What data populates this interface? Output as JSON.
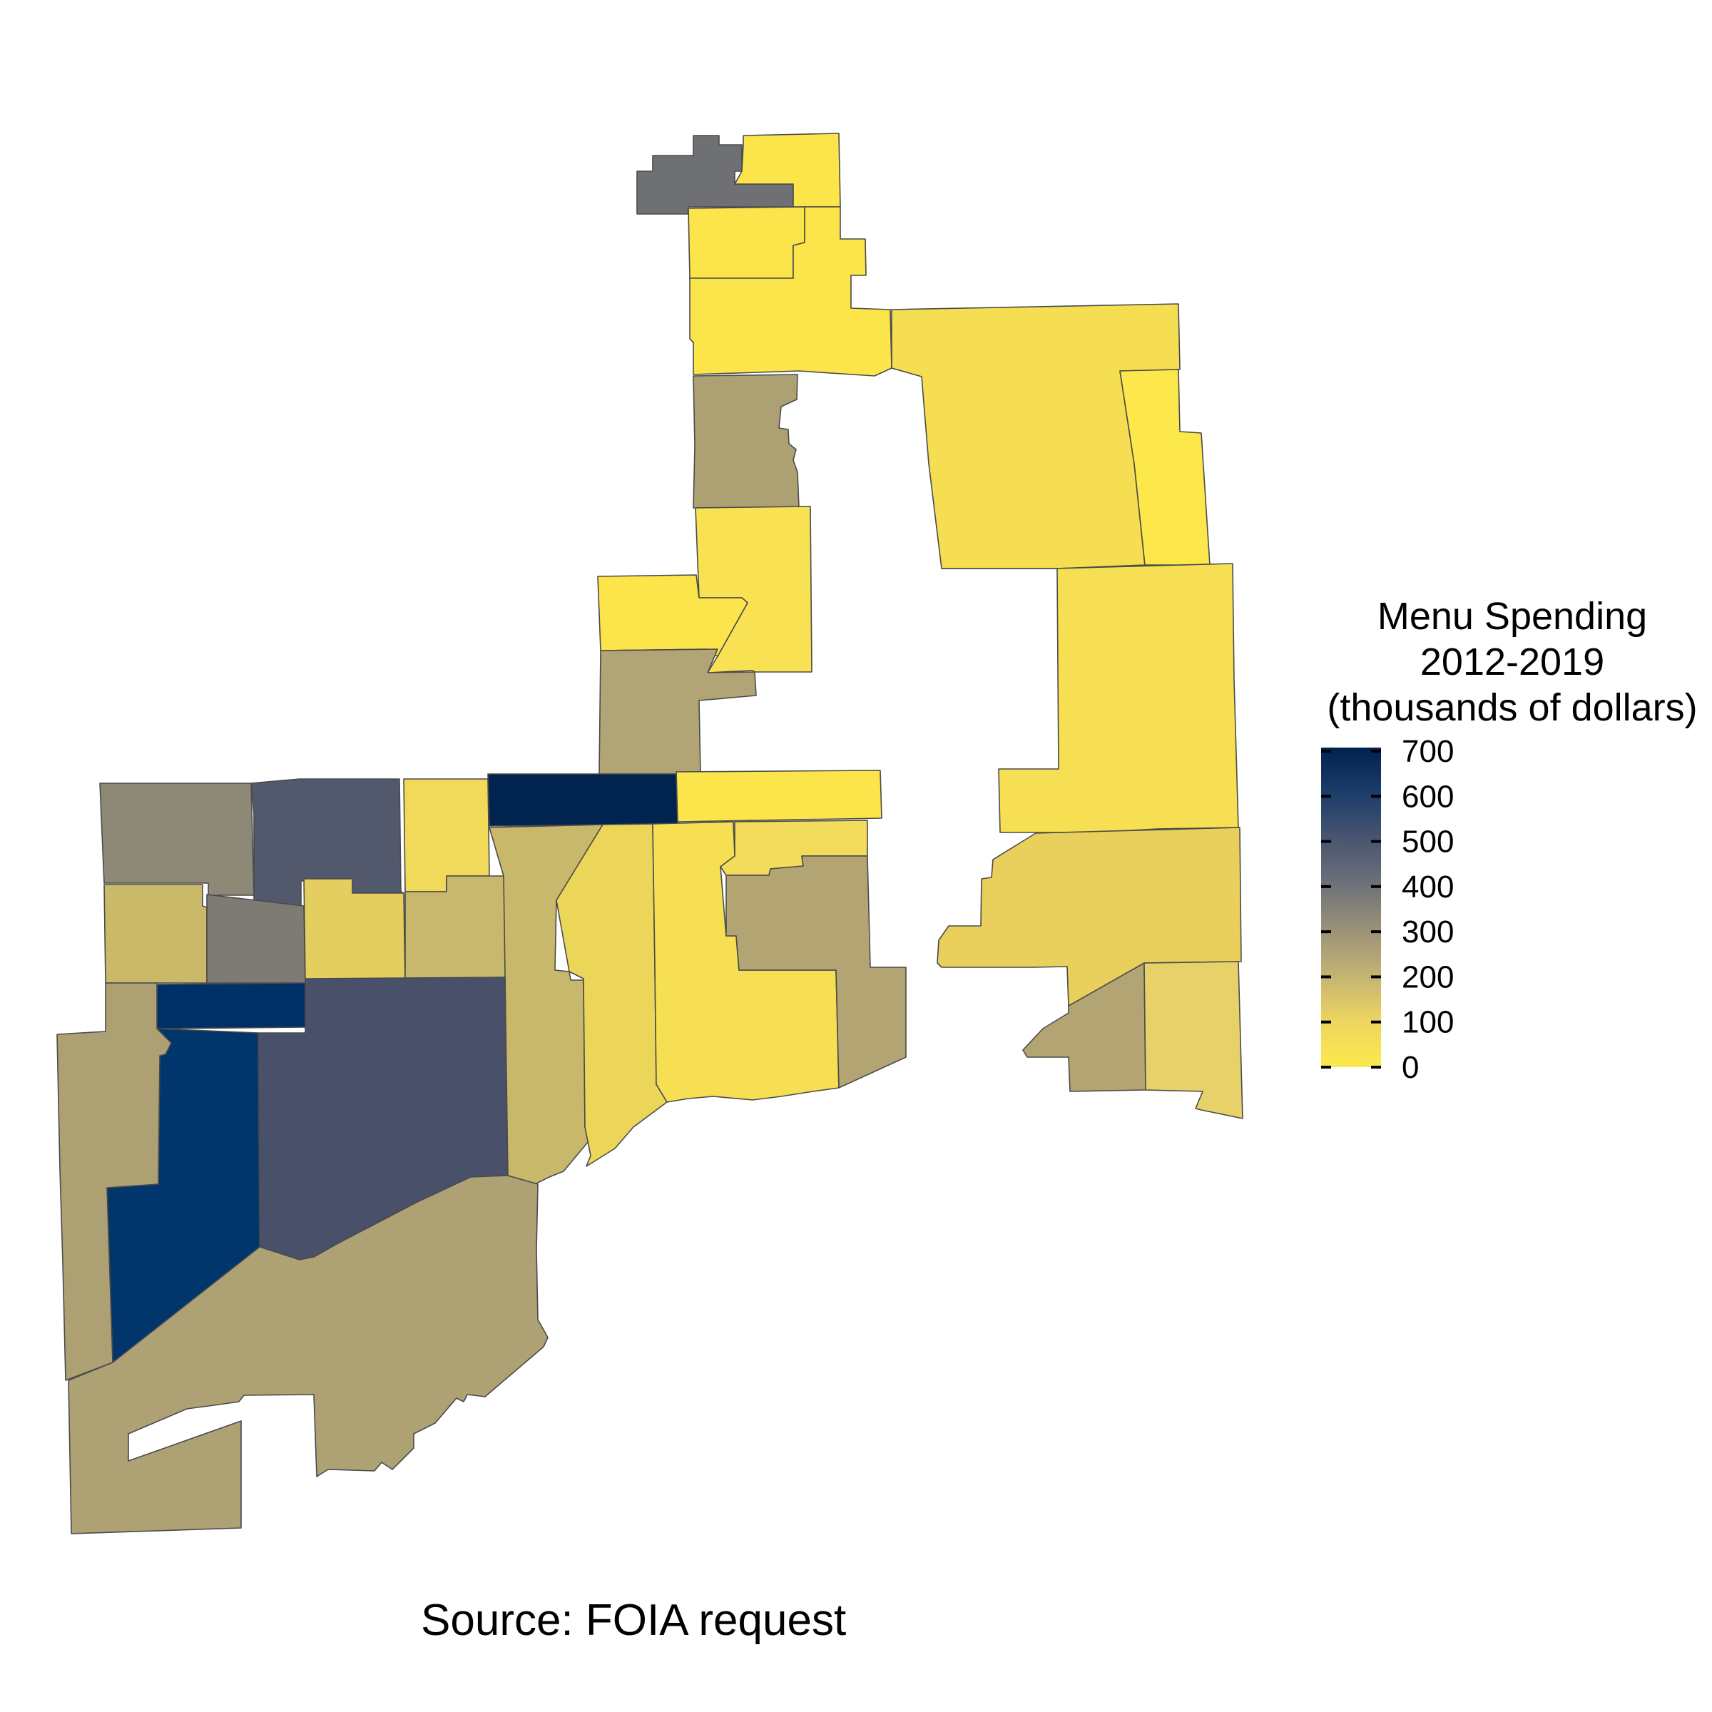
{
  "map": {
    "colors": {
      "ramp": [
        "#fce94b",
        "#f3db59",
        "#e5d068",
        "#c9b871",
        "#aea277",
        "#8f8879",
        "#6f7278",
        "#51596d",
        "#364868",
        "#1c3e6b",
        "#002e6b",
        "#00224e"
      ],
      "border": "#4a4a4a",
      "background": "#ffffff"
    },
    "legend": {
      "title_lines": [
        "Menu Spending",
        "2012-2019",
        "(thousands of dollars)"
      ],
      "ticks": [
        "0",
        "100",
        "200",
        "300",
        "400",
        "500",
        "600",
        "700"
      ],
      "range": [
        0,
        700
      ]
    },
    "caption": "Source: FOIA request"
  }
}
